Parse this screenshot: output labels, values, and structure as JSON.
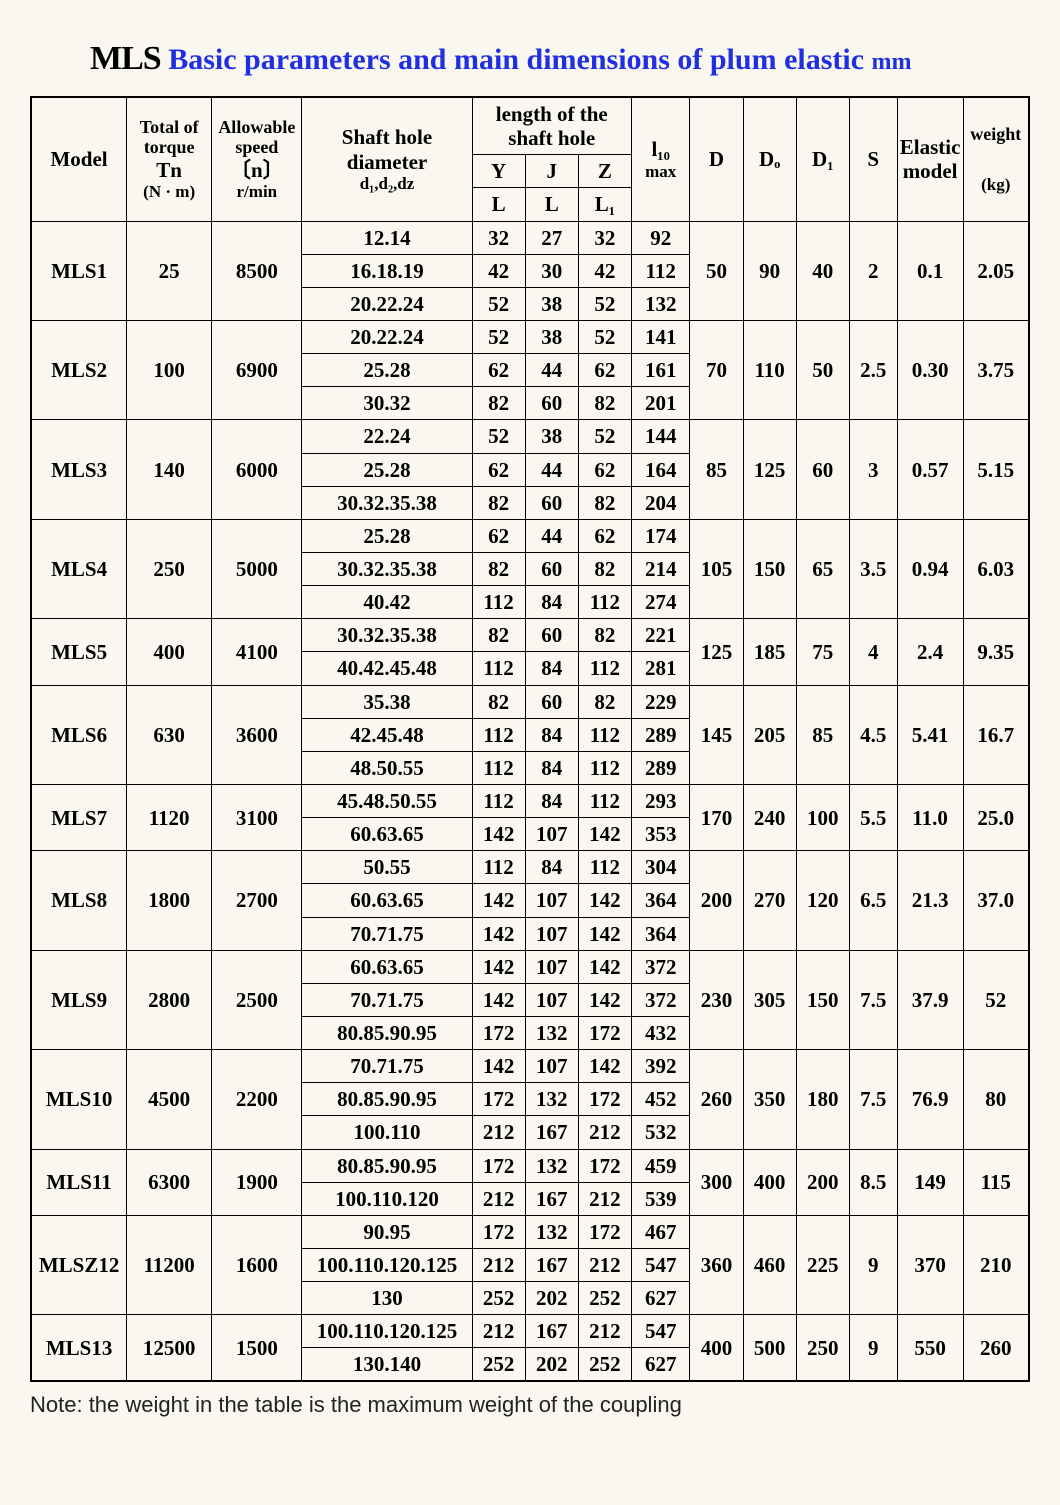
{
  "title": {
    "mls": "MLS",
    "rest": " Basic parameters and main dimensions of plum elastic ",
    "unit": "mm"
  },
  "colors": {
    "background": "#f9f7ef",
    "title_accent": "#2030e0",
    "border": "#000000",
    "text": "#000000"
  },
  "header": {
    "model": "Model",
    "torque_top": "Total of torque",
    "torque_sym": "Tn",
    "torque_unit": "(N · m)",
    "speed_top": "Allowable speed",
    "speed_sym": "〔n〕",
    "speed_unit": "r/min",
    "diameter_top": "Shaft hole diameter",
    "diameter_sub": "d₁,d₂,dz",
    "length_top": "length of the shaft hole",
    "Y": "Y",
    "J": "J",
    "Z": "Z",
    "L": "L",
    "L2": "L",
    "L1": "L₁",
    "l10_top": "l₁₀",
    "l10_sub": "max",
    "D": "D",
    "Do": "Dₒ",
    "D1": "D₁",
    "S": "S",
    "elastic": "Elastic model",
    "weight_top": "weight",
    "weight_unit": "(kg)"
  },
  "rows": [
    {
      "model": "MLS1",
      "torque": "25",
      "speed": "8500",
      "D": "50",
      "Do": "90",
      "D1": "40",
      "S": "2",
      "elastic": "0.1",
      "weight": "2.05",
      "sub": [
        {
          "dia": "12.14",
          "YL": "32",
          "JL": "27",
          "ZL1": "32",
          "l10": "92"
        },
        {
          "dia": "16.18.19",
          "YL": "42",
          "JL": "30",
          "ZL1": "42",
          "l10": "112"
        },
        {
          "dia": "20.22.24",
          "YL": "52",
          "JL": "38",
          "ZL1": "52",
          "l10": "132"
        }
      ]
    },
    {
      "model": "MLS2",
      "torque": "100",
      "speed": "6900",
      "D": "70",
      "Do": "110",
      "D1": "50",
      "S": "2.5",
      "elastic": "0.30",
      "weight": "3.75",
      "sub": [
        {
          "dia": "20.22.24",
          "YL": "52",
          "JL": "38",
          "ZL1": "52",
          "l10": "141"
        },
        {
          "dia": "25.28",
          "YL": "62",
          "JL": "44",
          "ZL1": "62",
          "l10": "161"
        },
        {
          "dia": "30.32",
          "YL": "82",
          "JL": "60",
          "ZL1": "82",
          "l10": "201"
        }
      ]
    },
    {
      "model": "MLS3",
      "torque": "140",
      "speed": "6000",
      "D": "85",
      "Do": "125",
      "D1": "60",
      "S": "3",
      "elastic": "0.57",
      "weight": "5.15",
      "sub": [
        {
          "dia": "22.24",
          "YL": "52",
          "JL": "38",
          "ZL1": "52",
          "l10": "144"
        },
        {
          "dia": "25.28",
          "YL": "62",
          "JL": "44",
          "ZL1": "62",
          "l10": "164"
        },
        {
          "dia": "30.32.35.38",
          "YL": "82",
          "JL": "60",
          "ZL1": "82",
          "l10": "204"
        }
      ]
    },
    {
      "model": "MLS4",
      "torque": "250",
      "speed": "5000",
      "D": "105",
      "Do": "150",
      "D1": "65",
      "S": "3.5",
      "elastic": "0.94",
      "weight": "6.03",
      "sub": [
        {
          "dia": "25.28",
          "YL": "62",
          "JL": "44",
          "ZL1": "62",
          "l10": "174"
        },
        {
          "dia": "30.32.35.38",
          "YL": "82",
          "JL": "60",
          "ZL1": "82",
          "l10": "214"
        },
        {
          "dia": "40.42",
          "YL": "112",
          "JL": "84",
          "ZL1": "112",
          "l10": "274"
        }
      ]
    },
    {
      "model": "MLS5",
      "torque": "400",
      "speed": "4100",
      "D": "125",
      "Do": "185",
      "D1": "75",
      "S": "4",
      "elastic": "2.4",
      "weight": "9.35",
      "sub": [
        {
          "dia": "30.32.35.38",
          "YL": "82",
          "JL": "60",
          "ZL1": "82",
          "l10": "221"
        },
        {
          "dia": "40.42.45.48",
          "YL": "112",
          "JL": "84",
          "ZL1": "112",
          "l10": "281"
        }
      ]
    },
    {
      "model": "MLS6",
      "torque": "630",
      "speed": "3600",
      "D": "145",
      "Do": "205",
      "D1": "85",
      "S": "4.5",
      "elastic": "5.41",
      "weight": "16.7",
      "sub": [
        {
          "dia": "35.38",
          "YL": "82",
          "JL": "60",
          "ZL1": "82",
          "l10": "229"
        },
        {
          "dia": "42.45.48",
          "YL": "112",
          "JL": "84",
          "ZL1": "112",
          "l10": "289"
        },
        {
          "dia": "48.50.55",
          "YL": "112",
          "JL": "84",
          "ZL1": "112",
          "l10": "289"
        }
      ]
    },
    {
      "model": "MLS7",
      "torque": "1120",
      "speed": "3100",
      "D": "170",
      "Do": "240",
      "D1": "100",
      "S": "5.5",
      "elastic": "11.0",
      "weight": "25.0",
      "sub": [
        {
          "dia": "45.48.50.55",
          "diaClass": "small",
          "YL": "112",
          "JL": "84",
          "ZL1": "112",
          "l10": "293"
        },
        {
          "dia": "60.63.65",
          "YL": "142",
          "JL": "107",
          "ZL1": "142",
          "l10": "353"
        }
      ]
    },
    {
      "model": "MLS8",
      "torque": "1800",
      "speed": "2700",
      "D": "200",
      "Do": "270",
      "D1": "120",
      "S": "6.5",
      "elastic": "21.3",
      "weight": "37.0",
      "sub": [
        {
          "dia": "50.55",
          "YL": "112",
          "JL": "84",
          "ZL1": "112",
          "l10": "304"
        },
        {
          "dia": "60.63.65",
          "YL": "142",
          "JL": "107",
          "ZL1": "142",
          "l10": "364"
        },
        {
          "dia": "70.71.75",
          "YL": "142",
          "JL": "107",
          "ZL1": "142",
          "l10": "364"
        }
      ]
    },
    {
      "model": "MLS9",
      "torque": "2800",
      "speed": "2500",
      "D": "230",
      "Do": "305",
      "D1": "150",
      "S": "7.5",
      "elastic": "37.9",
      "weight": "52",
      "sub": [
        {
          "dia": "60.63.65",
          "YL": "142",
          "JL": "107",
          "ZL1": "142",
          "l10": "372"
        },
        {
          "dia": "70.71.75",
          "YL": "142",
          "JL": "107",
          "ZL1": "142",
          "l10": "372"
        },
        {
          "dia": "80.85.90.95",
          "YL": "172",
          "JL": "132",
          "ZL1": "172",
          "l10": "432"
        }
      ]
    },
    {
      "model": "MLS10",
      "torque": "4500",
      "speed": "2200",
      "D": "260",
      "Do": "350",
      "D1": "180",
      "S": "7.5",
      "elastic": "76.9",
      "weight": "80",
      "sub": [
        {
          "dia": "70.71.75",
          "YL": "142",
          "JL": "107",
          "ZL1": "142",
          "l10": "392"
        },
        {
          "dia": "80.85.90.95",
          "diaClass": "small",
          "YL": "172",
          "JL": "132",
          "ZL1": "172",
          "l10": "452"
        },
        {
          "dia": "100.110",
          "YL": "212",
          "JL": "167",
          "ZL1": "212",
          "l10": "532"
        }
      ]
    },
    {
      "model": "MLS11",
      "torque": "6300",
      "speed": "1900",
      "D": "300",
      "Do": "400",
      "D1": "200",
      "S": "8.5",
      "elastic": "149",
      "weight": "115",
      "sub": [
        {
          "dia": "80.85.90.95",
          "diaClass": "vsmall",
          "YL": "172",
          "JL": "132",
          "ZL1": "172",
          "l10": "459"
        },
        {
          "dia": "100.110.120",
          "YL": "212",
          "JL": "167",
          "ZL1": "212",
          "l10": "539"
        }
      ]
    },
    {
      "model": "MLSZ12",
      "torque": "11200",
      "speed": "1600",
      "D": "360",
      "Do": "460",
      "D1": "225",
      "S": "9",
      "elastic": "370",
      "weight": "210",
      "sub": [
        {
          "dia": "90.95",
          "YL": "172",
          "JL": "132",
          "ZL1": "172",
          "l10": "467"
        },
        {
          "dia": "100.110.120.125",
          "diaClass": "vsmall",
          "YL": "212",
          "JL": "167",
          "ZL1": "212",
          "l10": "547"
        },
        {
          "dia": "130",
          "YL": "252",
          "JL": "202",
          "ZL1": "252",
          "l10": "627"
        }
      ]
    },
    {
      "model": "MLS13",
      "torque": "12500",
      "speed": "1500",
      "D": "400",
      "Do": "500",
      "D1": "250",
      "S": "9",
      "elastic": "550",
      "weight": "260",
      "sub": [
        {
          "dia": "100.110.120.125",
          "diaClass": "vsmall",
          "YL": "212",
          "JL": "167",
          "ZL1": "212",
          "l10": "547"
        },
        {
          "dia": "130.140",
          "YL": "252",
          "JL": "202",
          "ZL1": "252",
          "l10": "627"
        }
      ]
    }
  ],
  "note": "Note: the weight in the table is the maximum weight of the coupling"
}
